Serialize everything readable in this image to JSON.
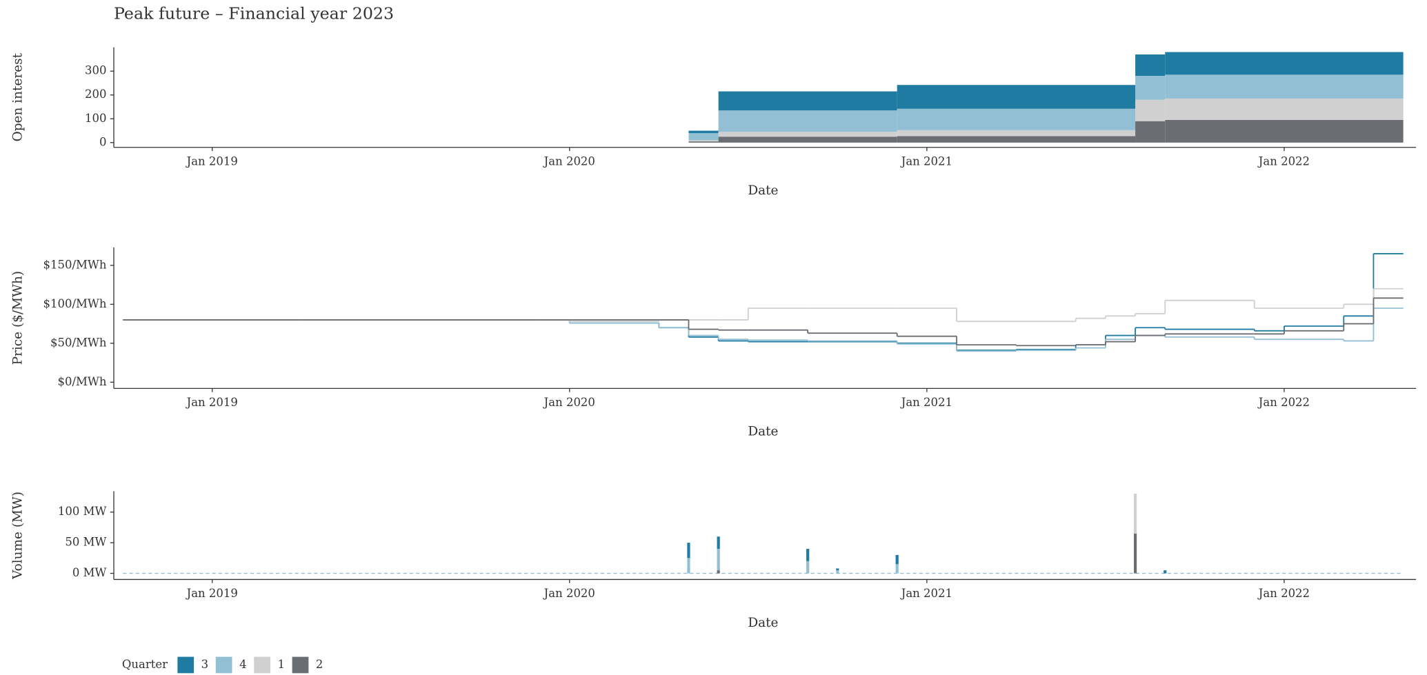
{
  "chart_data": [
    {
      "type": "area",
      "stacked": true,
      "title": "Peak future – Financial year 2023",
      "legend_title": "Quarter",
      "x_label": "Date",
      "y_label": "Open interest",
      "x": [
        "2018-10",
        "2019-04",
        "2020-04",
        "2020-05",
        "2020-06",
        "2020-12",
        "2021-08",
        "2021-09"
      ],
      "xlim": [
        "2018-10",
        "2022-05"
      ],
      "xticks": [
        {
          "value": "2019-01",
          "label": "Jan 2019"
        },
        {
          "value": "2020-01",
          "label": "Jan 2020"
        },
        {
          "value": "2021-01",
          "label": "Jan 2021"
        },
        {
          "value": "2022-01",
          "label": "Jan 2022"
        }
      ],
      "ylim": [
        -20,
        400
      ],
      "yticks": [
        0,
        100,
        200,
        300
      ],
      "series": [
        {
          "name": "3",
          "color": "#1f7ba1",
          "values": [
            0,
            0,
            0,
            10,
            80,
            100,
            90,
            95
          ]
        },
        {
          "name": "4",
          "color": "#93bfd4",
          "values": [
            0,
            0,
            0,
            30,
            90,
            90,
            100,
            100
          ]
        },
        {
          "name": "1",
          "color": "#d0d0d0",
          "values": [
            0,
            0,
            0,
            5,
            20,
            25,
            90,
            90
          ]
        },
        {
          "name": "2",
          "color": "#6a6e73",
          "values": [
            0,
            0,
            0,
            5,
            25,
            27,
            90,
            95
          ]
        }
      ]
    },
    {
      "type": "line",
      "x_label": "Date",
      "y_label": "Price ($/MWh)",
      "x": [
        "2018-10",
        "2019-04",
        "2019-12",
        "2020-01",
        "2020-04",
        "2020-05",
        "2020-06",
        "2020-07",
        "2020-09",
        "2020-12",
        "2021-02",
        "2021-04",
        "2021-06",
        "2021-07",
        "2021-08",
        "2021-09",
        "2021-12",
        "2022-01",
        "2022-03",
        "2022-04"
      ],
      "xlim": [
        "2018-10",
        "2022-05"
      ],
      "xticks": [
        {
          "value": "2019-01",
          "label": "Jan 2019"
        },
        {
          "value": "2020-01",
          "label": "Jan 2020"
        },
        {
          "value": "2021-01",
          "label": "Jan 2021"
        },
        {
          "value": "2022-01",
          "label": "Jan 2022"
        }
      ],
      "ylim": [
        -8,
        173
      ],
      "yticks": [
        {
          "value": 0,
          "label": "$0/MWh"
        },
        {
          "value": 50,
          "label": "$50/MWh"
        },
        {
          "value": 100,
          "label": "$100/MWh"
        },
        {
          "value": 150,
          "label": "$150/MWh"
        }
      ],
      "series": [
        {
          "name": "3",
          "color": "#1f7ba1",
          "values": [
            80,
            80,
            80,
            76,
            70,
            58,
            53,
            52,
            52,
            50,
            41,
            42,
            48,
            60,
            70,
            68,
            66,
            72,
            85,
            165
          ]
        },
        {
          "name": "4",
          "color": "#93bfd4",
          "values": [
            80,
            80,
            80,
            76,
            70,
            60,
            55,
            54,
            53,
            49,
            40,
            41,
            44,
            55,
            60,
            58,
            55,
            55,
            53,
            95
          ]
        },
        {
          "name": "1",
          "color": "#d0d0d0",
          "values": [
            80,
            80,
            80,
            78,
            80,
            80,
            80,
            95,
            95,
            95,
            78,
            78,
            82,
            85,
            88,
            105,
            95,
            95,
            100,
            120
          ]
        },
        {
          "name": "2",
          "color": "#6a6e73",
          "values": [
            80,
            80,
            80,
            80,
            80,
            68,
            67,
            67,
            63,
            59,
            48,
            47,
            48,
            52,
            60,
            62,
            62,
            66,
            75,
            108
          ]
        }
      ]
    },
    {
      "type": "bar",
      "stacked": true,
      "x_label": "Date",
      "y_label": "Volume (MW)",
      "x": [
        "2020-05",
        "2020-06",
        "2020-09",
        "2020-10",
        "2020-12",
        "2021-08",
        "2021-09"
      ],
      "xlim": [
        "2018-10",
        "2022-05"
      ],
      "xticks": [
        {
          "value": "2019-01",
          "label": "Jan 2019"
        },
        {
          "value": "2020-01",
          "label": "Jan 2020"
        },
        {
          "value": "2021-01",
          "label": "Jan 2021"
        },
        {
          "value": "2022-01",
          "label": "Jan 2022"
        }
      ],
      "ylim": [
        -10,
        134
      ],
      "yticks": [
        {
          "value": 0,
          "label": "0 MW"
        },
        {
          "value": 50,
          "label": "50 MW"
        },
        {
          "value": 100,
          "label": "100 MW"
        }
      ],
      "series": [
        {
          "name": "3",
          "color": "#1f7ba1",
          "values": [
            25,
            20,
            20,
            3,
            15,
            0,
            5
          ]
        },
        {
          "name": "4",
          "color": "#93bfd4",
          "values": [
            25,
            35,
            20,
            5,
            15,
            0,
            0
          ]
        },
        {
          "name": "1",
          "color": "#d0d0d0",
          "values": [
            0,
            0,
            0,
            0,
            0,
            65,
            0
          ]
        },
        {
          "name": "2",
          "color": "#6a6e73",
          "values": [
            0,
            5,
            0,
            0,
            0,
            65,
            0
          ]
        }
      ]
    }
  ]
}
